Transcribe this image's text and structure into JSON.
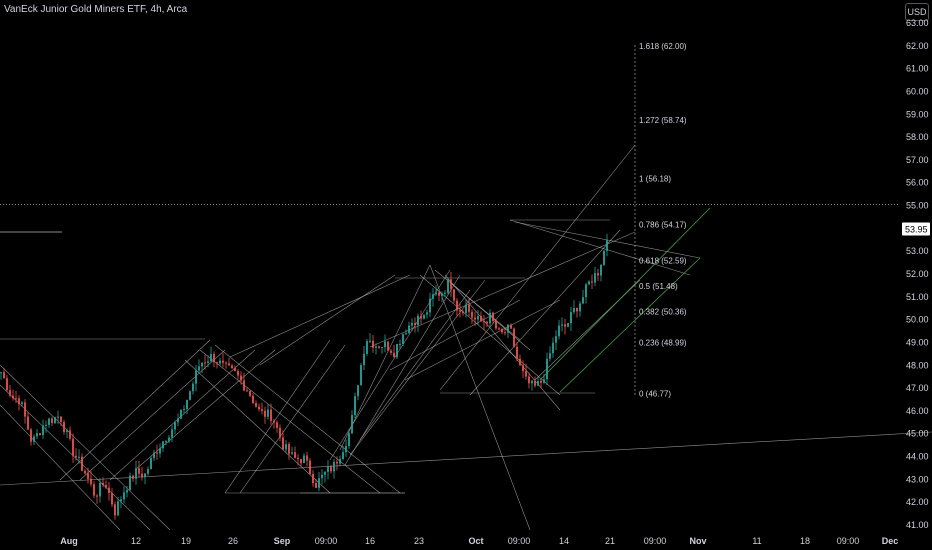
{
  "header": {
    "title": "VanEck Junior Gold Miners ETF, 4h, Arca",
    "currency_button": "USD"
  },
  "chart_data": {
    "type": "candlestick",
    "y_axis": {
      "range": [
        40.6,
        63.2
      ],
      "ticks": [
        "63.00",
        "62.00",
        "61.00",
        "60.00",
        "59.00",
        "58.00",
        "57.00",
        "56.00",
        "55.00",
        "54.00",
        "53.00",
        "52.00",
        "51.00",
        "50.00",
        "49.00",
        "48.00",
        "47.00",
        "46.00",
        "45.00",
        "44.00",
        "43.00",
        "42.00",
        "41.00"
      ],
      "current_price": "53.95",
      "current_price_value": 53.95
    },
    "x_axis": {
      "ticks": [
        "Aug",
        "12",
        "19",
        "26",
        "Sep",
        "09:00",
        "16",
        "23",
        "Oct",
        "09:00",
        "14",
        "21",
        "09:00",
        "Nov",
        "11",
        "18",
        "09:00",
        "Dec"
      ],
      "bold_ticks": [
        "Aug",
        "Sep",
        "Oct",
        "Nov",
        "Dec"
      ]
    },
    "fib_levels": [
      {
        "label": "1.618 (62.00)",
        "value": 62.0
      },
      {
        "label": "1.272 (58.74)",
        "value": 58.74
      },
      {
        "label": "1 (56.18)",
        "value": 56.18
      },
      {
        "label": "0.786 (54.17)",
        "value": 54.17
      },
      {
        "label": "0.618 (52.59)",
        "value": 52.59
      },
      {
        "label": "0.5 (51.48)",
        "value": 51.48
      },
      {
        "label": "0.382 (50.36)",
        "value": 50.36
      },
      {
        "label": "0.236 (48.99)",
        "value": 48.99
      },
      {
        "label": "0 (46.77)",
        "value": 46.77
      }
    ],
    "horizontal_line_value": 55.05,
    "colors": {
      "up": "#26a69a",
      "down": "#ef5350",
      "line": "#bdbdbd",
      "green_line": "#4caf50",
      "background": "#000000",
      "price_tag": "#ffffff"
    },
    "candle_anchors": [
      [
        0,
        47.8
      ],
      [
        12,
        46.6
      ],
      [
        20,
        46.5
      ],
      [
        32,
        44.6
      ],
      [
        45,
        45.5
      ],
      [
        60,
        45.8
      ],
      [
        72,
        44.3
      ],
      [
        85,
        43.3
      ],
      [
        95,
        42.3
      ],
      [
        105,
        42.9
      ],
      [
        115,
        41.6
      ],
      [
        125,
        42.6
      ],
      [
        135,
        43.3
      ],
      [
        145,
        43.2
      ],
      [
        155,
        44.2
      ],
      [
        168,
        45.0
      ],
      [
        180,
        45.7
      ],
      [
        192,
        47.1
      ],
      [
        200,
        48.1
      ],
      [
        212,
        48.4
      ],
      [
        224,
        47.9
      ],
      [
        236,
        47.6
      ],
      [
        248,
        46.9
      ],
      [
        260,
        45.9
      ],
      [
        272,
        45.8
      ],
      [
        284,
        44.4
      ],
      [
        294,
        43.9
      ],
      [
        304,
        43.9
      ],
      [
        316,
        42.8
      ],
      [
        326,
        43.3
      ],
      [
        334,
        43.6
      ],
      [
        342,
        44.3
      ],
      [
        350,
        45.1
      ],
      [
        358,
        47.3
      ],
      [
        366,
        49.2
      ],
      [
        376,
        48.9
      ],
      [
        386,
        48.9
      ],
      [
        394,
        48.6
      ],
      [
        404,
        49.5
      ],
      [
        414,
        50.0
      ],
      [
        424,
        50.1
      ],
      [
        434,
        51.1
      ],
      [
        442,
        51.2
      ],
      [
        450,
        51.7
      ],
      [
        458,
        50.4
      ],
      [
        466,
        50.6
      ],
      [
        474,
        50.0
      ],
      [
        482,
        49.9
      ],
      [
        490,
        50.1
      ],
      [
        500,
        49.3
      ],
      [
        510,
        49.6
      ],
      [
        518,
        48.1
      ],
      [
        526,
        47.3
      ],
      [
        534,
        47.0
      ],
      [
        542,
        47.3
      ],
      [
        550,
        48.5
      ],
      [
        558,
        49.6
      ],
      [
        566,
        49.7
      ],
      [
        574,
        50.4
      ],
      [
        582,
        50.9
      ],
      [
        590,
        51.7
      ],
      [
        598,
        52.1
      ],
      [
        604,
        53.0
      ],
      [
        609,
        53.95
      ]
    ]
  }
}
